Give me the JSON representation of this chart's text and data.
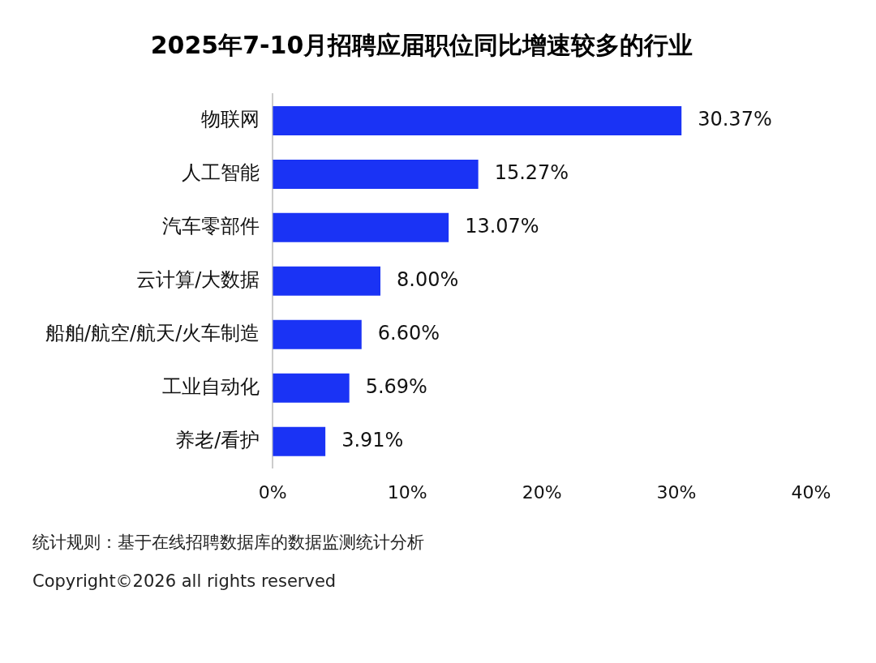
{
  "chart_data": {
    "type": "bar",
    "orientation": "horizontal",
    "title": "2025年7-10月招聘应届职位同比增速较多的行业",
    "categories": [
      "物联网",
      "人工智能",
      "汽车零部件",
      "云计算/大数据",
      "船舶/航空/航天/火车制造",
      "工业自动化",
      "养老/看护"
    ],
    "values": [
      30.37,
      15.27,
      13.07,
      8.0,
      6.6,
      5.69,
      3.91
    ],
    "value_labels": [
      "30.37%",
      "15.27%",
      "13.07%",
      "8.00%",
      "6.60%",
      "5.69%",
      "3.91%"
    ],
    "color": "#1a33f5",
    "xlim": [
      0,
      40
    ],
    "xticks": [
      {
        "value": 0,
        "label": "0%"
      },
      {
        "value": 10,
        "label": "10%"
      },
      {
        "value": 20,
        "label": "20%"
      },
      {
        "value": 30,
        "label": "30%"
      },
      {
        "value": 40,
        "label": "40%"
      }
    ],
    "grid": false,
    "legend": false,
    "annotations": [
      "统计规则：基于在线招聘数据库的数据监测统计分析",
      "Copyright©2026 all rights reserved"
    ]
  }
}
